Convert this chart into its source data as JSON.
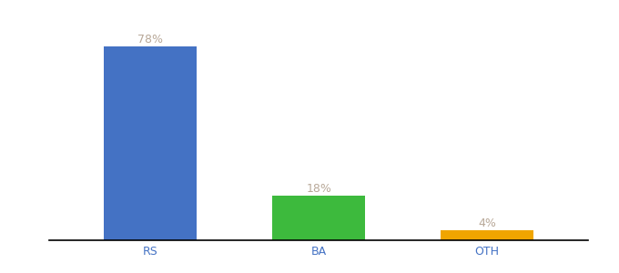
{
  "categories": [
    "RS",
    "BA",
    "OTH"
  ],
  "values": [
    78,
    18,
    4
  ],
  "labels": [
    "78%",
    "18%",
    "4%"
  ],
  "bar_colors": [
    "#4472c4",
    "#3dba3d",
    "#f0a500"
  ],
  "label_color": "#b8a898",
  "tick_color": "#4472c4",
  "background_color": "#ffffff",
  "ylim": [
    0,
    88
  ],
  "bar_width": 0.55,
  "label_fontsize": 9,
  "tick_fontsize": 9,
  "x_positions": [
    0,
    1,
    2
  ]
}
